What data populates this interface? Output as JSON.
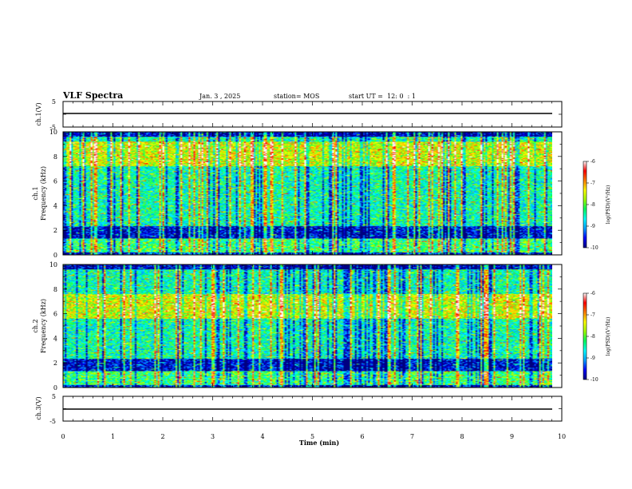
{
  "header": {
    "title": "VLF Spectra",
    "date": "Jan. 3 , 2025",
    "station": "station= MOS",
    "start_ut": "start UT =  12: 0  : 1"
  },
  "colors": {
    "colormap": [
      "#000080",
      "#0000ff",
      "#00a0ff",
      "#00ffff",
      "#00ff60",
      "#a0ff00",
      "#ffff00",
      "#ff8000",
      "#ff0000",
      "#ffffff"
    ],
    "line": "#000000"
  },
  "chart_data": [
    {
      "type": "line",
      "name": "ch1-waveform",
      "ylabel": "ch.1(V)",
      "ylim": [
        -5,
        5
      ],
      "yticks": [
        "5",
        "-5"
      ],
      "x_range_min": [
        0,
        9.8
      ],
      "y_baseline": -1.0
    },
    {
      "type": "heatmap",
      "name": "ch1-spectrogram",
      "ylabel_line1": "ch.1",
      "ylabel_line2": "Frequency (kHz)",
      "ylim": [
        0,
        10
      ],
      "yticks": [
        "0",
        "2",
        "4",
        "6",
        "8",
        "10"
      ],
      "colorbar": {
        "label": "log(PSD)(V²/Hz)",
        "ticks": [
          "-6",
          "-7",
          "-8",
          "-9",
          "-10"
        ],
        "range": [
          -10,
          -6
        ]
      }
    },
    {
      "type": "heatmap",
      "name": "ch2-spectrogram",
      "ylabel_line1": "ch.2",
      "ylabel_line2": "Frequency (kHz)",
      "ylim": [
        0,
        10
      ],
      "yticks": [
        "0",
        "2",
        "4",
        "6",
        "8",
        "10"
      ],
      "colorbar": {
        "label": "log(PSD)(V²/Hz)",
        "ticks": [
          "-6",
          "-7",
          "-8",
          "-9",
          "-10"
        ],
        "range": [
          -10,
          -6
        ]
      }
    },
    {
      "type": "line",
      "name": "ch3-waveform",
      "ylabel": "ch.3(V)",
      "ylim": [
        -5,
        5
      ],
      "yticks": [
        "5",
        "-5"
      ],
      "x_range_min": [
        0,
        9.8
      ],
      "y_baseline": -1.0
    }
  ],
  "xaxis": {
    "label": "Time (min)",
    "range": [
      0,
      10
    ],
    "ticks": [
      "0",
      "1",
      "2",
      "3",
      "4",
      "5",
      "6",
      "7",
      "8",
      "9",
      "10"
    ]
  }
}
